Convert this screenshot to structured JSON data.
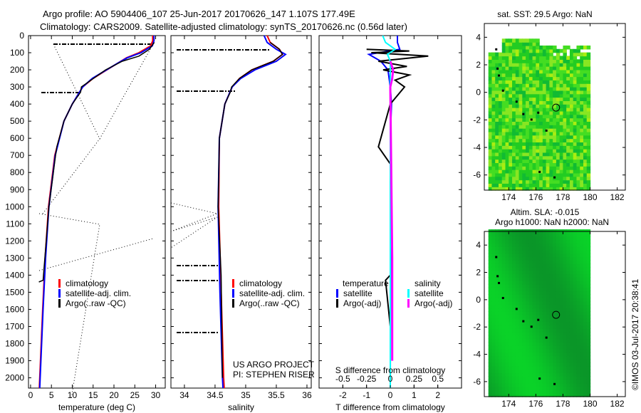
{
  "title": {
    "line1": "Argo profile: AO 5904406_107 25-Jun-2017 20170626_147 1.107S 177.49E",
    "line2": "Climatology: CARS2009. Satellite-adjusted climatology: synTS_20170626.nc (0.56d later)"
  },
  "colors": {
    "climatology": "#ff0000",
    "satellite": "#0000ff",
    "argo": "#000000",
    "sal_satellite": "#00ffff",
    "sal_argo": "#ff00ff"
  },
  "chart_data": [
    {
      "type": "line",
      "name": "temperature-panel",
      "xlabel": "temperature (deg C)",
      "ylabel": "",
      "xlim": [
        -0.5,
        32.3
      ],
      "ylim": [
        2060,
        0
      ],
      "xticks": [
        "0",
        "5",
        "10",
        "15",
        "20",
        "25",
        "30"
      ],
      "xtickvals": [
        0,
        5,
        10,
        15,
        20,
        25,
        30
      ],
      "yticks": [
        "0",
        "100",
        "200",
        "300",
        "400",
        "500",
        "600",
        "700",
        "800",
        "900",
        "1000",
        "1100",
        "1200",
        "1300",
        "1400",
        "1500",
        "1600",
        "1700",
        "1800",
        "1900",
        "2000"
      ],
      "legend": [
        "climatology",
        "satellite-adj. clim.",
        "Argo(..raw -QC)"
      ],
      "series": [
        {
          "name": "climatology",
          "depth": [
            0,
            30,
            60,
            100,
            130,
            160,
            200,
            250,
            300,
            400,
            500,
            700,
            1000,
            1300,
            1600,
            2000,
            2060
          ],
          "values": [
            29.3,
            29.3,
            28.8,
            26,
            23,
            21,
            18.3,
            15,
            12.5,
            10,
            8,
            5.8,
            4.3,
            3.5,
            2.9,
            2.2,
            2.1
          ]
        },
        {
          "name": "satellite-adj. clim.",
          "depth": [
            0,
            30,
            60,
            100,
            130,
            160,
            200,
            250,
            300,
            400,
            500,
            700,
            1000,
            1300,
            1600,
            2000,
            2060
          ],
          "values": [
            29.6,
            29.6,
            29.2,
            26.5,
            23.2,
            21,
            18.2,
            14.8,
            12.5,
            10,
            8,
            5.9,
            4.4,
            3.6,
            3,
            2.3,
            2.2
          ]
        },
        {
          "name": "Argo",
          "depth": [
            40,
            45,
            80,
            120,
            150,
            200,
            260,
            300,
            330,
            400,
            500,
            650,
            700,
            1000,
            1430,
            1440
          ],
          "values": [
            29.7,
            29.5,
            28.5,
            26,
            22,
            18,
            14.5,
            12.2,
            12,
            10,
            8,
            6.3,
            6,
            4.4,
            3,
            2
          ]
        }
      ]
    },
    {
      "type": "line",
      "name": "salinity-panel",
      "xlabel": "salinity",
      "xlim": [
        33.78,
        36.07
      ],
      "ylim": [
        2060,
        0
      ],
      "xticks": [
        "34",
        "34.5",
        "35",
        "35.5",
        "36"
      ],
      "xtickvals": [
        34,
        34.5,
        35,
        35.5,
        36
      ],
      "legend": [
        "climatology",
        "satellite-adj. clim.",
        "Argo(..raw -QC)"
      ],
      "annotation": [
        "US ARGO PROJECT",
        "PI: STEPHEN RISER"
      ],
      "series": [
        {
          "name": "climatology",
          "depth": [
            0,
            40,
            80,
            110,
            150,
            200,
            250,
            300,
            400,
            600,
            1000,
            1500,
            2000,
            2060
          ],
          "values": [
            35.35,
            35.4,
            35.55,
            35.6,
            35.45,
            35.1,
            34.9,
            34.78,
            34.66,
            34.57,
            34.56,
            34.6,
            34.64,
            34.65
          ]
        },
        {
          "name": "satellite-adj. clim.",
          "depth": [
            0,
            40,
            80,
            110,
            150,
            200,
            250,
            300,
            400,
            600,
            1000,
            1500,
            2000,
            2060
          ],
          "values": [
            35.3,
            35.35,
            35.5,
            35.65,
            35.5,
            35.15,
            34.92,
            34.78,
            34.66,
            34.57,
            34.55,
            34.58,
            34.62,
            34.63
          ]
        },
        {
          "name": "Argo",
          "depth": [
            40,
            80,
            110,
            150,
            200,
            250,
            300,
            330,
            400,
            600,
            1000,
            1400,
            2000
          ],
          "values": [
            35.4,
            35.55,
            35.6,
            35.45,
            35.1,
            34.9,
            34.77,
            34.75,
            34.66,
            34.57,
            34.55,
            34.6,
            34.62
          ]
        }
      ]
    },
    {
      "type": "line",
      "name": "difference-panel",
      "xlabel": "T difference from climatology",
      "x2label": "S difference from climatology",
      "xlim": [
        -3,
        3
      ],
      "ylim": [
        2060,
        0
      ],
      "xticks": [
        "-2",
        "-1",
        "0",
        "1",
        "2"
      ],
      "xtickvals": [
        -2,
        -1,
        0,
        1,
        2
      ],
      "x2ticks": [
        "-0.5",
        "-0.25",
        "0",
        "0.25",
        "0.5"
      ],
      "x2tickvals": [
        -0.5,
        -0.25,
        0,
        0.25,
        0.5
      ],
      "legend": {
        "temperature_header": "temperature",
        "salinity_header": "salinity",
        "t_satellite": "satellite",
        "t_argo": "Argo(-adj)",
        "s_satellite": "satellite",
        "s_argo": "Argo(-adj)"
      },
      "series": [
        {
          "name": "T satellite",
          "depth": [
            0,
            40,
            80,
            110,
            150,
            200,
            300,
            400,
            600,
            1000,
            2000,
            2060
          ],
          "values": [
            0.3,
            0.3,
            0.4,
            -0.9,
            -0.4,
            -0.1,
            0,
            0.05,
            0,
            0.02,
            0,
            0
          ]
        },
        {
          "name": "T Argo",
          "depth": [
            80,
            90,
            100,
            120,
            150,
            180,
            200,
            230,
            260,
            300,
            400,
            650,
            750,
            1400,
            1430,
            1700
          ],
          "values": [
            -1,
            0.8,
            -0.8,
            1.6,
            -0.5,
            0.7,
            -0.3,
            0.8,
            0.2,
            0.6,
            0,
            -0.5,
            0,
            0,
            -0.2,
            0
          ]
        },
        {
          "name": "S satellite",
          "depth": [
            0,
            40,
            80,
            110,
            150,
            200,
            300,
            400,
            600,
            1000,
            2000,
            2060
          ],
          "values": [
            -0.08,
            -0.05,
            0.05,
            -0.03,
            0,
            0,
            0,
            0,
            0,
            0,
            0,
            0
          ]
        },
        {
          "name": "S Argo",
          "depth": [
            150,
            200,
            250,
            300,
            1300,
            1380,
            1800,
            1900
          ],
          "values": [
            0,
            0.03,
            0.02,
            0,
            0.02,
            0.02,
            0.02,
            0.02
          ]
        }
      ]
    },
    {
      "type": "heatmap",
      "name": "sst-map",
      "title": "sat. SST: 29.5 Argo: NaN",
      "xlim": [
        172.2,
        182.6
      ],
      "ylim": [
        -7.1,
        5
      ],
      "xticks": [
        "174",
        "176",
        "178",
        "180",
        "182"
      ],
      "xtickvals": [
        174,
        176,
        178,
        180,
        182
      ],
      "yticks": [
        "4",
        "2",
        "0",
        "-2",
        "-4",
        "-6"
      ],
      "ytickvals": [
        4,
        2,
        0,
        -2,
        -4,
        -6
      ],
      "marker": {
        "lon": 177.49,
        "lat": -1.107
      }
    },
    {
      "type": "heatmap",
      "name": "sla-map",
      "title": "Altim. SLA: -0.015",
      "subtitle": "Argo h1000: NaN h2000: NaN",
      "xlim": [
        172.2,
        182.6
      ],
      "ylim": [
        -7.1,
        5
      ],
      "xticks": [
        "174",
        "176",
        "178",
        "180",
        "182"
      ],
      "xtickvals": [
        174,
        176,
        178,
        180,
        182
      ],
      "yticks": [
        "4",
        "2",
        "0",
        "-2",
        "-4",
        "-6"
      ],
      "ytickvals": [
        4,
        2,
        0,
        -2,
        -4,
        -6
      ],
      "marker": {
        "lon": 177.49,
        "lat": -1.107
      }
    }
  ],
  "credit": "©IMOS 03-Jul-2017 20:38:41"
}
